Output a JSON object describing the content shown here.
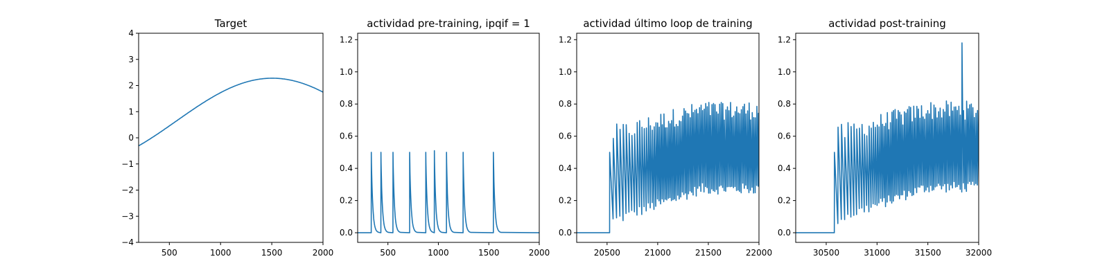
{
  "chart_data": [
    {
      "type": "line",
      "title": "Target",
      "xlim": [
        200,
        2000
      ],
      "ylim": [
        -4,
        4
      ],
      "xticks": [
        500,
        1000,
        1500,
        2000
      ],
      "yticks": [
        -4,
        -3,
        -2,
        -1,
        0,
        1,
        2,
        3,
        4
      ],
      "xticklabels": [
        "500",
        "1000",
        "1500",
        "2000"
      ],
      "yticklabels": [
        "−4",
        "−3",
        "−2",
        "−1",
        "0",
        "1",
        "2",
        "3",
        "4"
      ],
      "series": [
        {
          "x_range": [
            200,
            2000
          ],
          "shape": "sinusoid",
          "values": {
            "at_200": -1.0,
            "peak_x": 1505,
            "peak_y": 2.28,
            "at_2000": 1.6
          }
        }
      ],
      "grid": false,
      "colors": {
        "line": "#1f77b4"
      }
    },
    {
      "type": "line",
      "title": "actividad pre-training, ipqif = 1",
      "xlim": [
        200,
        2000
      ],
      "ylim": [
        -0.06,
        1.24
      ],
      "xticks": [
        500,
        1000,
        1500,
        2000
      ],
      "yticks": [
        0.0,
        0.2,
        0.4,
        0.6,
        0.8,
        1.0,
        1.2
      ],
      "xticklabels": [
        "500",
        "1000",
        "1500",
        "2000"
      ],
      "yticklabels": [
        "0.0",
        "0.2",
        "0.4",
        "0.6",
        "0.8",
        "1.0",
        "1.2"
      ],
      "series": [
        {
          "shape": "spikes",
          "spike_x": [
            335,
            430,
            550,
            715,
            875,
            960,
            1080,
            1245,
            1545
          ],
          "spike_peak": [
            0.5,
            0.5,
            0.5,
            0.5,
            0.5,
            0.51,
            0.5,
            0.5,
            0.5
          ],
          "baseline": 0.0
        }
      ],
      "grid": false,
      "colors": {
        "line": "#1f77b4"
      }
    },
    {
      "type": "line",
      "title": "actividad último loop de training",
      "xlim": [
        20200,
        22000
      ],
      "ylim": [
        -0.06,
        1.24
      ],
      "xticks": [
        20500,
        21000,
        21500,
        22000
      ],
      "yticks": [
        0.0,
        0.2,
        0.4,
        0.6,
        0.8,
        1.0,
        1.2
      ],
      "xticklabels": [
        "20500",
        "21000",
        "21500",
        "22000"
      ],
      "yticklabels": [
        "0.0",
        "0.2",
        "0.4",
        "0.6",
        "0.8",
        "1.0",
        "1.2"
      ],
      "series": [
        {
          "shape": "oscillation",
          "onset_x": 20525,
          "first_peak": 0.5,
          "peak_range": [
            0.5,
            0.81
          ],
          "trough_range": [
            0.05,
            0.3
          ],
          "end_peak": 0.73,
          "end_trough": 0.25
        }
      ],
      "grid": false,
      "colors": {
        "line": "#1f77b4"
      }
    },
    {
      "type": "line",
      "title": "actividad post-training",
      "xlim": [
        30200,
        32000
      ],
      "ylim": [
        -0.06,
        1.24
      ],
      "xticks": [
        30500,
        31000,
        31500,
        32000
      ],
      "yticks": [
        0.0,
        0.2,
        0.4,
        0.6,
        0.8,
        1.0,
        1.2
      ],
      "xticklabels": [
        "30500",
        "31000",
        "31500",
        "32000"
      ],
      "yticklabels": [
        "0.0",
        "0.2",
        "0.4",
        "0.6",
        "0.8",
        "1.0",
        "1.2"
      ],
      "series": [
        {
          "shape": "oscillation",
          "onset_x": 30580,
          "first_peak": 0.5,
          "peak_range": [
            0.5,
            0.82
          ],
          "trough_range": [
            0.05,
            0.28
          ],
          "max_spike_x": 31830,
          "max_spike_y": 1.18
        }
      ],
      "grid": false,
      "colors": {
        "line": "#1f77b4"
      }
    }
  ]
}
